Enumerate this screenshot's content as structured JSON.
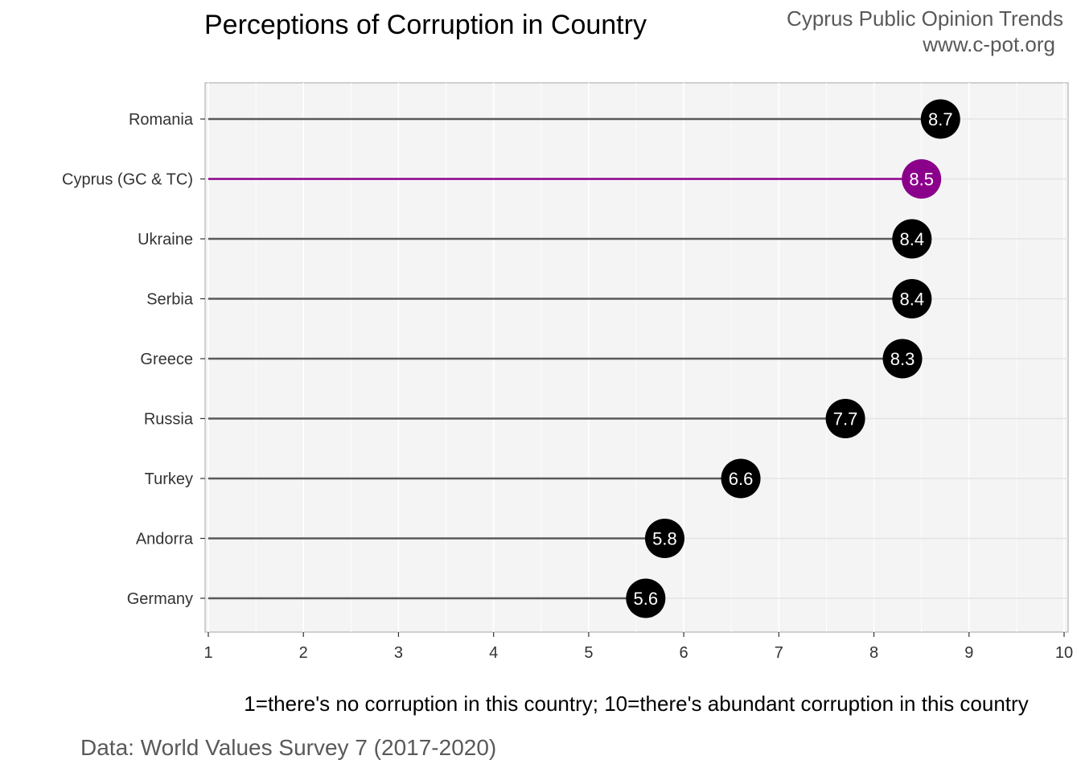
{
  "header": {
    "title": "Perceptions of Corruption in Country",
    "brand_line1": "Cyprus Public Opinion Trends",
    "brand_line2": "www.c-pot.org"
  },
  "footer": {
    "caption": "Data: World Values Survey 7 (2017-2020)"
  },
  "colors": {
    "default": "#000000",
    "highlight": "#8B008B",
    "stem_default": "#595959",
    "panel_bg": "#f4f4f4"
  },
  "chart_data": {
    "type": "lollipop",
    "title": "Perceptions of Corruption in Country",
    "xlabel": "1=there's no corruption in this country; 10=there's abundant corruption in this country",
    "ylabel": "",
    "xlim": [
      1,
      10
    ],
    "x_ticks": [
      "1",
      "2",
      "3",
      "4",
      "5",
      "6",
      "7",
      "8",
      "9",
      "10"
    ],
    "grid": true,
    "highlight": "Cyprus (GC & TC)",
    "categories": [
      "Romania",
      "Cyprus (GC & TC)",
      "Ukraine",
      "Serbia",
      "Greece",
      "Russia",
      "Turkey",
      "Andorra",
      "Germany"
    ],
    "values": [
      8.7,
      8.5,
      8.4,
      8.4,
      8.3,
      7.7,
      6.6,
      5.8,
      5.6
    ],
    "value_labels": [
      "8.7",
      "8.5",
      "8.4",
      "8.4",
      "8.3",
      "7.7",
      "6.6",
      "5.8",
      "5.6"
    ]
  }
}
